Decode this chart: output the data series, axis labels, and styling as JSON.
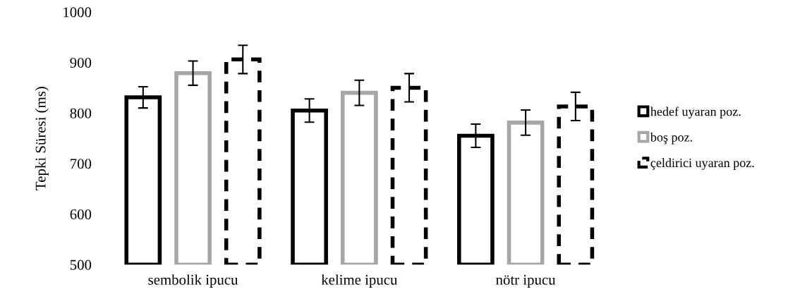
{
  "chart_data": {
    "type": "bar",
    "ylabel": "Tepki Süresi (ms)",
    "categories": [
      "sembolik ipucu",
      "kelime ipucu",
      "nötr ipucu"
    ],
    "series": [
      {
        "name": "hedef uyaran poz.",
        "color": "#000000",
        "values": [
          831,
          805,
          755
        ],
        "errors": [
          21,
          23,
          23
        ],
        "line_style": "solid"
      },
      {
        "name": "boş poz.",
        "color": "#a6a6a6",
        "values": [
          879,
          840,
          781
        ],
        "errors": [
          24,
          25,
          25
        ],
        "line_style": "solid"
      },
      {
        "name": "çeldirici uyaran poz.",
        "color": "#000000",
        "values": [
          906,
          850,
          813
        ],
        "errors": [
          28,
          28,
          28
        ],
        "line_style": "dashed"
      }
    ],
    "ylim": [
      500,
      1000
    ],
    "yticks": [
      500,
      600,
      700,
      800,
      900,
      1000
    ],
    "grid": false,
    "legend": "right"
  }
}
